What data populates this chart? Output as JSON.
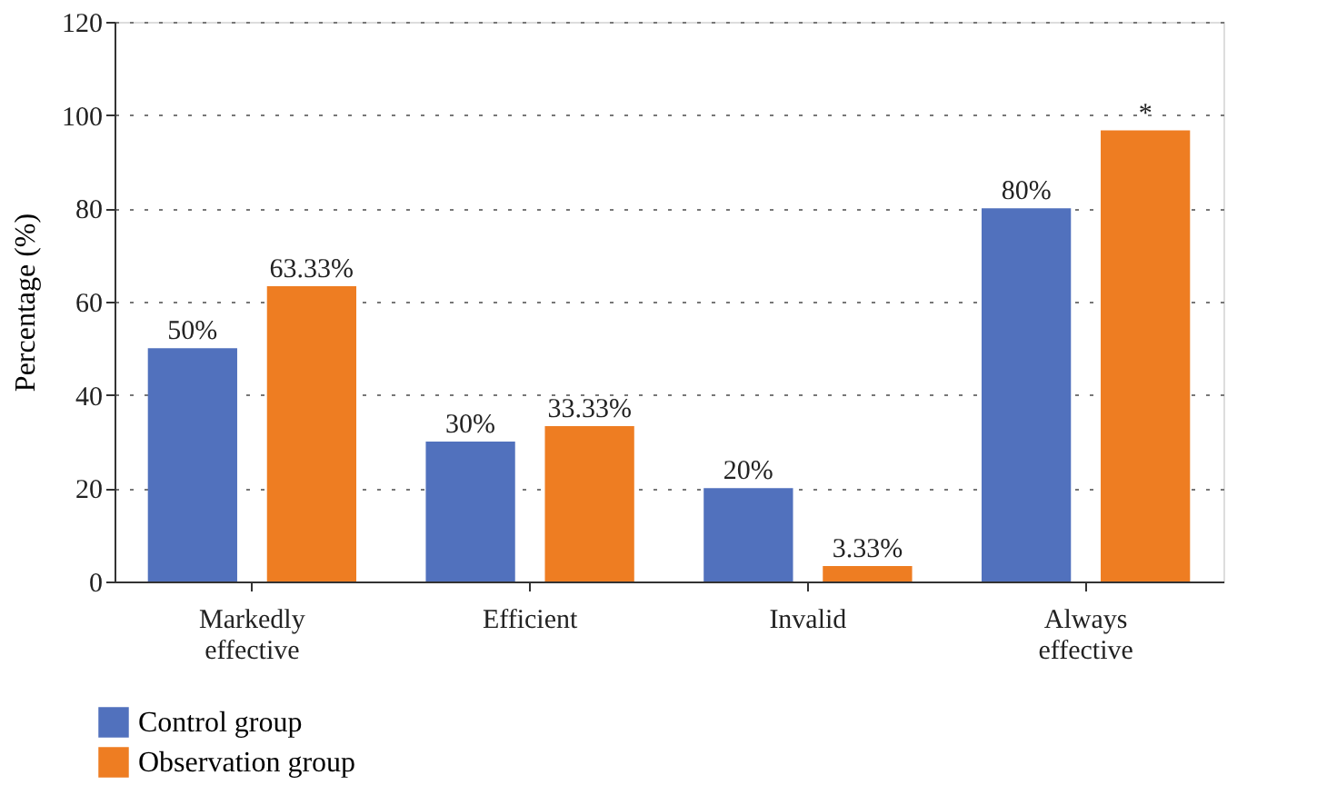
{
  "chart_data": {
    "type": "bar",
    "ylabel": "Percentage (%)",
    "categories": [
      "Markedly effective",
      "Efficient",
      "Invalid",
      "Always effective"
    ],
    "series": [
      {
        "name": "Control group",
        "color": "#5171bd",
        "values": [
          50,
          30,
          20,
          80
        ],
        "value_labels": [
          "50%",
          "30%",
          "20%",
          "80%"
        ]
      },
      {
        "name": "Observation group",
        "color": "#ee7d22",
        "values": [
          63.33,
          33.33,
          3.33,
          96.7
        ],
        "value_labels": [
          "63.33%",
          "33.33%",
          "3.33%",
          "*"
        ]
      }
    ],
    "ylim": [
      0,
      120
    ],
    "yticks": [
      0,
      20,
      40,
      60,
      80,
      100,
      120
    ],
    "grid": "y",
    "legend": "bottom left"
  }
}
